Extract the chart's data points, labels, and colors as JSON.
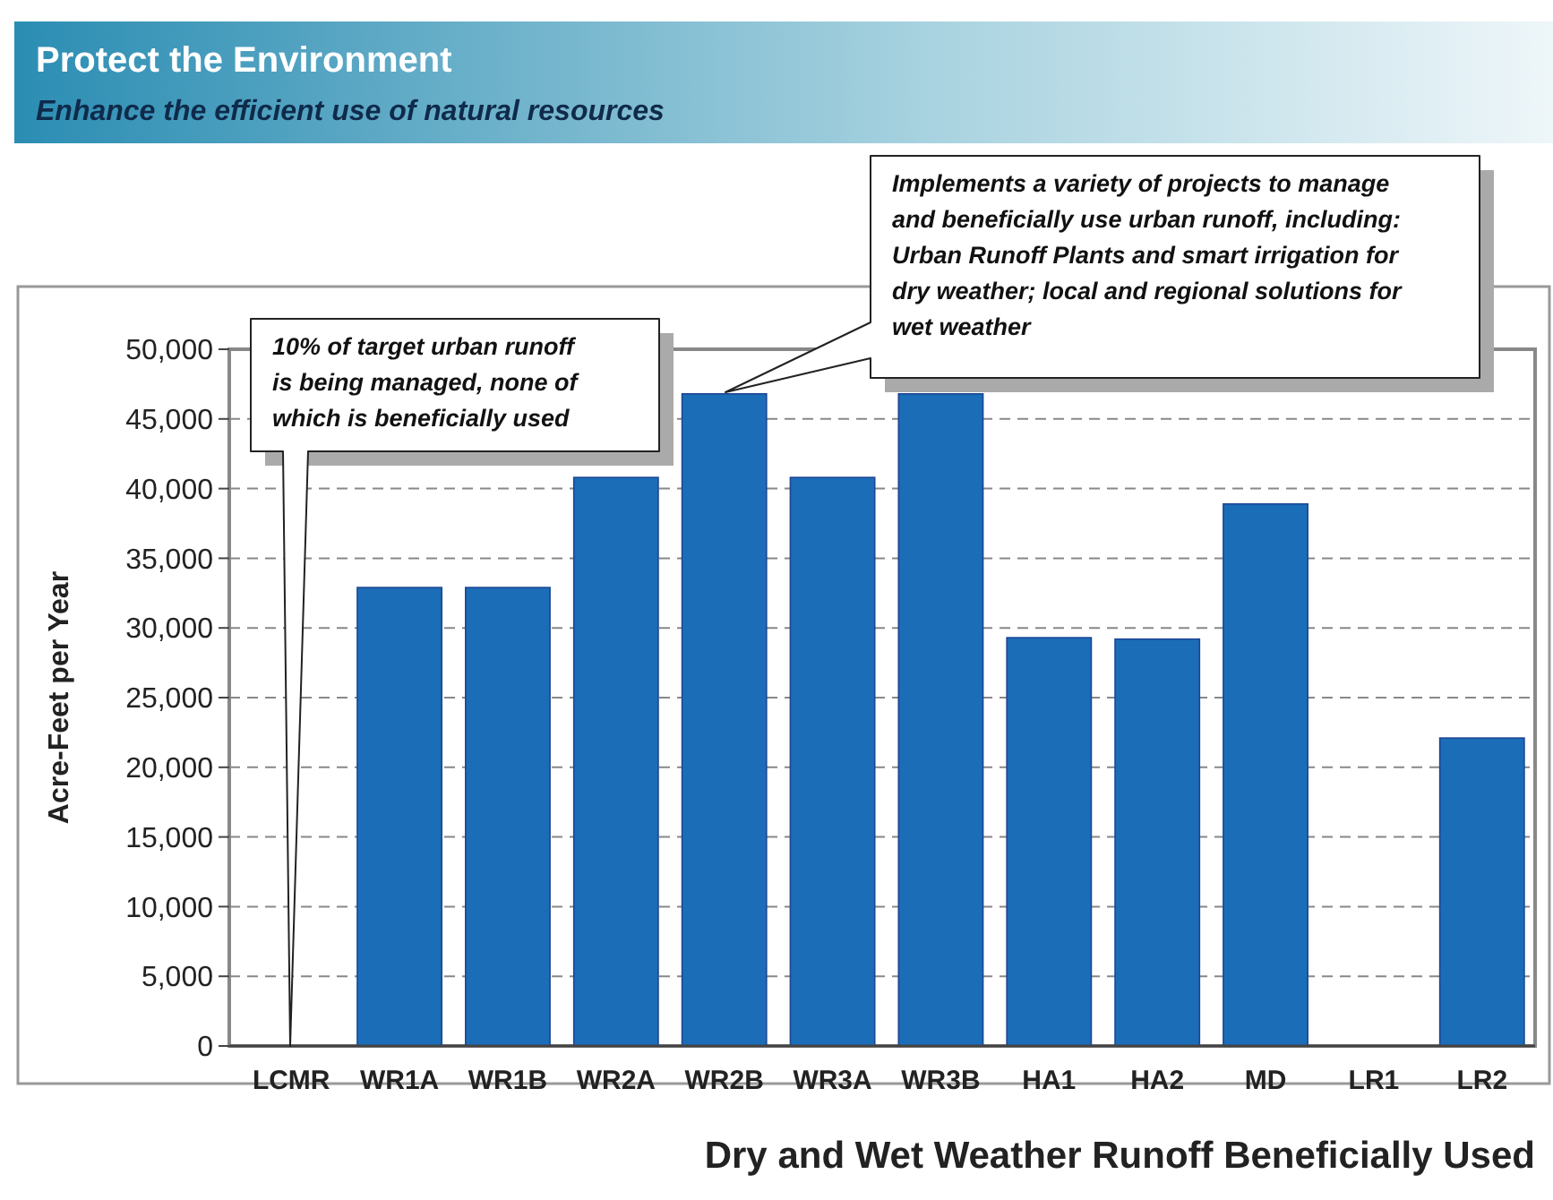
{
  "chart_data": {
    "type": "bar",
    "title": "Protect the Environment",
    "subtitle": "Enhance the efficient use of natural resources",
    "xlabel": "Dry and Wet Weather Runoff Beneficially Used",
    "ylabel": "Acre-Feet per Year",
    "categories": [
      "LCMR",
      "WR1A",
      "WR1B",
      "WR2A",
      "WR2B",
      "WR3A",
      "WR3B",
      "HA1",
      "HA2",
      "MD",
      "LR1",
      "LR2"
    ],
    "values": [
      0,
      32900,
      32900,
      40800,
      46800,
      40800,
      46800,
      29300,
      29200,
      38900,
      0,
      22100
    ],
    "color": "#1b6db8",
    "ylim": [
      0,
      50000
    ],
    "yticks": [
      {
        "value": 0,
        "label": "0"
      },
      {
        "value": 5000,
        "label": "5,000"
      },
      {
        "value": 10000,
        "label": "10,000"
      },
      {
        "value": 15000,
        "label": "15,000"
      },
      {
        "value": 20000,
        "label": "20,000"
      },
      {
        "value": 25000,
        "label": "25,000"
      },
      {
        "value": 30000,
        "label": "30,000"
      },
      {
        "value": 35000,
        "label": "35,000"
      },
      {
        "value": 40000,
        "label": "40,000"
      },
      {
        "value": 45000,
        "label": "45,000"
      },
      {
        "value": 50000,
        "label": "50,000"
      }
    ],
    "grid": "y",
    "annotations": [
      "10% of target urban runoff is being managed, none of which is beneficially used",
      "Implements a variety of projects to manage and beneficially use urban runoff, including: Urban Runoff Plants and smart irrigation for dry weather; local and regional solutions for wet weather"
    ]
  }
}
